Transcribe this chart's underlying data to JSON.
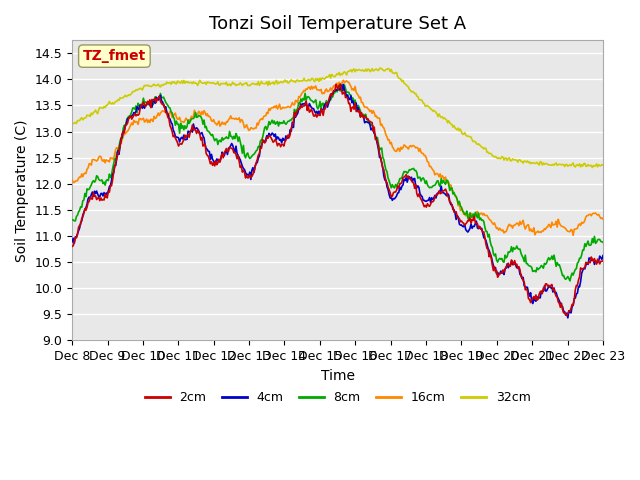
{
  "title": "Tonzi Soil Temperature Set A",
  "xlabel": "Time",
  "ylabel": "Soil Temperature (C)",
  "ylim": [
    9.0,
    14.75
  ],
  "xlim": [
    0,
    15
  ],
  "tick_labels": [
    "Dec 8",
    "Dec 9",
    "Dec 10",
    "Dec 11",
    "Dec 12",
    "Dec 13",
    "Dec 14",
    "Dec 15",
    "Dec 16",
    "Dec 17",
    "Dec 18",
    "Dec 19",
    "Dec 20",
    "Dec 21",
    "Dec 22",
    "Dec 23"
  ],
  "legend_entries": [
    "2cm",
    "4cm",
    "8cm",
    "16cm",
    "32cm"
  ],
  "line_colors": [
    "#cc0000",
    "#0000cc",
    "#00aa00",
    "#ff8800",
    "#cccc00"
  ],
  "annotation_text": "TZ_fmet",
  "annotation_color": "#cc0000",
  "annotation_bg": "#ffffcc",
  "title_fontsize": 13,
  "label_fontsize": 10,
  "tick_fontsize": 9,
  "yticks": [
    9.0,
    9.5,
    10.0,
    10.5,
    11.0,
    11.5,
    12.0,
    12.5,
    13.0,
    13.5,
    14.0,
    14.5
  ]
}
